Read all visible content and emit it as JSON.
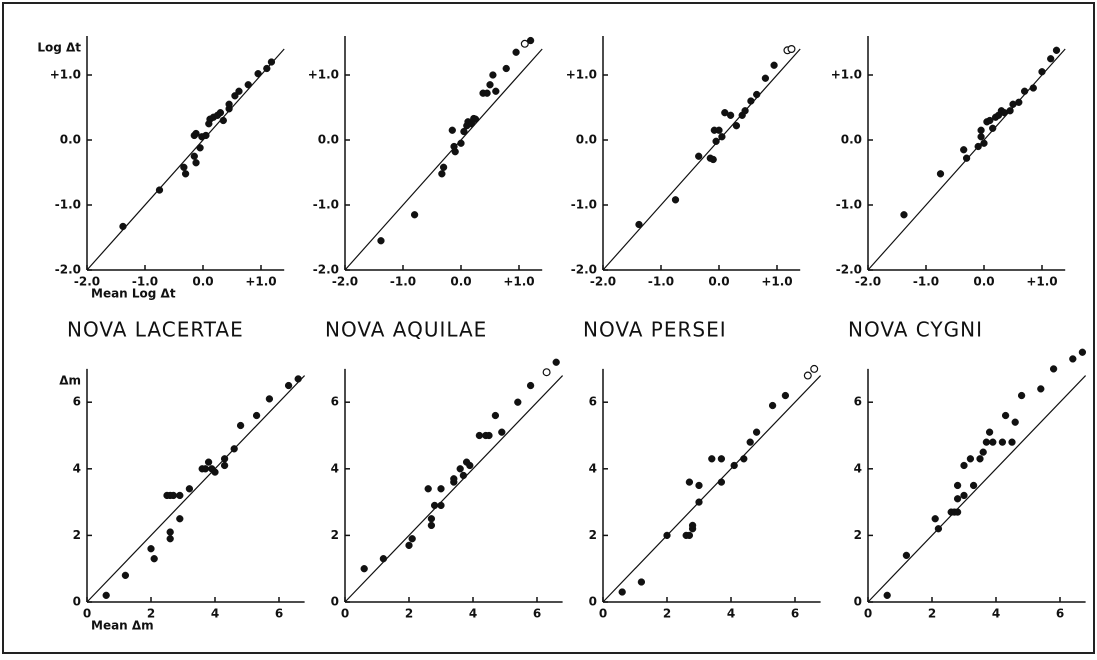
{
  "chart_data": [
    {
      "type": "scatter",
      "ylabel": "Log Δt",
      "xlabel": "Mean Log Δt",
      "xlim": [
        -2,
        1.4
      ],
      "ylim": [
        -2,
        1.6
      ],
      "identity_line": true,
      "xticks": [
        {
          "value": -2,
          "label": "-2.0"
        },
        {
          "value": -1,
          "label": "-1.0"
        },
        {
          "value": 0,
          "label": "0.0"
        },
        {
          "value": 1,
          "label": "+1.0"
        }
      ],
      "yticks": [
        {
          "value": -2,
          "label": "-2.0"
        },
        {
          "value": -1,
          "label": "-1.0"
        },
        {
          "value": 0,
          "label": "0.0"
        },
        {
          "value": 1,
          "label": "+1.0"
        }
      ],
      "series": [
        {
          "fill": "filled",
          "x": [
            -1.38,
            -0.75,
            -0.33,
            -0.3,
            -0.15,
            -0.12,
            -0.15,
            -0.12,
            -0.05,
            -0.02,
            0.05,
            0.1,
            0.12,
            0.18,
            0.25,
            0.3,
            0.35,
            0.45,
            0.45,
            0.55,
            0.62,
            0.78,
            0.95,
            1.1,
            1.18
          ],
          "values": [
            -1.33,
            -0.77,
            -0.42,
            -0.52,
            0.07,
            0.1,
            -0.25,
            -0.35,
            -0.12,
            0.05,
            0.07,
            0.25,
            0.32,
            0.35,
            0.38,
            0.42,
            0.3,
            0.48,
            0.55,
            0.68,
            0.75,
            0.85,
            1.02,
            1.1,
            1.2
          ]
        }
      ]
    },
    {
      "type": "scatter",
      "xlim": [
        -2,
        1.4
      ],
      "ylim": [
        -2,
        1.6
      ],
      "identity_line": true,
      "xticks": [
        {
          "value": -2,
          "label": "-2.0"
        },
        {
          "value": -1,
          "label": "-1.0"
        },
        {
          "value": 0,
          "label": "0.0"
        },
        {
          "value": 1,
          "label": "+1.0"
        }
      ],
      "yticks": [
        {
          "value": -2,
          "label": "-2.0"
        },
        {
          "value": -1,
          "label": "-1.0"
        },
        {
          "value": 0,
          "label": "0.0"
        },
        {
          "value": 1,
          "label": "+1.0"
        }
      ],
      "series": [
        {
          "fill": "filled",
          "x": [
            -1.38,
            -0.8,
            -0.33,
            -0.3,
            -0.15,
            -0.12,
            -0.1,
            0.0,
            0.05,
            0.1,
            0.12,
            0.18,
            0.22,
            0.25,
            0.38,
            0.45,
            0.5,
            0.55,
            0.6,
            0.78,
            0.95,
            1.2
          ],
          "values": [
            -1.55,
            -1.15,
            -0.52,
            -0.42,
            0.15,
            -0.1,
            -0.18,
            -0.05,
            0.13,
            0.22,
            0.28,
            0.25,
            0.33,
            0.32,
            0.72,
            0.72,
            0.85,
            1.0,
            0.75,
            1.1,
            1.35,
            1.53
          ]
        },
        {
          "fill": "open",
          "x": [
            1.1
          ],
          "values": [
            1.48
          ]
        }
      ]
    },
    {
      "type": "scatter",
      "xlim": [
        -2,
        1.4
      ],
      "ylim": [
        -2,
        1.6
      ],
      "identity_line": true,
      "xticks": [
        {
          "value": -2,
          "label": "-2.0"
        },
        {
          "value": -1,
          "label": "-1.0"
        },
        {
          "value": 0,
          "label": "0.0"
        },
        {
          "value": 1,
          "label": "+1.0"
        }
      ],
      "yticks": [
        {
          "value": -2,
          "label": "-2.0"
        },
        {
          "value": -1,
          "label": "-1.0"
        },
        {
          "value": 0,
          "label": "0.0"
        },
        {
          "value": 1,
          "label": "+1.0"
        }
      ],
      "series": [
        {
          "fill": "filled",
          "x": [
            -1.38,
            -0.75,
            -0.35,
            -0.15,
            -0.1,
            -0.08,
            -0.05,
            0.0,
            0.05,
            0.1,
            0.2,
            0.3,
            0.4,
            0.45,
            0.55,
            0.65,
            0.8,
            0.95
          ],
          "values": [
            -1.3,
            -0.92,
            -0.25,
            -0.28,
            -0.3,
            0.15,
            -0.02,
            0.15,
            0.05,
            0.42,
            0.38,
            0.22,
            0.38,
            0.45,
            0.6,
            0.7,
            0.95,
            1.15
          ]
        },
        {
          "fill": "open",
          "x": [
            1.18,
            1.25
          ],
          "values": [
            1.38,
            1.4
          ]
        }
      ]
    },
    {
      "type": "scatter",
      "xlim": [
        -2,
        1.4
      ],
      "ylim": [
        -2,
        1.6
      ],
      "identity_line": true,
      "xticks": [
        {
          "value": -2,
          "label": "-2.0"
        },
        {
          "value": -1,
          "label": "-1.0"
        },
        {
          "value": 0,
          "label": "0.0"
        },
        {
          "value": 1,
          "label": "+1.0"
        }
      ],
      "yticks": [
        {
          "value": -2,
          "label": "-2.0"
        },
        {
          "value": -1,
          "label": "-1.0"
        },
        {
          "value": 0,
          "label": "0.0"
        },
        {
          "value": 1,
          "label": "+1.0"
        }
      ],
      "series": [
        {
          "fill": "filled",
          "x": [
            -1.38,
            -0.75,
            -0.35,
            -0.3,
            -0.1,
            -0.05,
            -0.05,
            0.0,
            0.05,
            0.1,
            0.15,
            0.2,
            0.25,
            0.3,
            0.35,
            0.45,
            0.5,
            0.6,
            0.7,
            0.85,
            1.0,
            1.15,
            1.25
          ],
          "values": [
            -1.15,
            -0.52,
            -0.15,
            -0.28,
            -0.1,
            0.05,
            0.15,
            -0.05,
            0.28,
            0.3,
            0.18,
            0.35,
            0.38,
            0.45,
            0.42,
            0.45,
            0.55,
            0.58,
            0.75,
            0.8,
            1.05,
            1.25,
            1.38
          ]
        }
      ]
    },
    {
      "type": "scatter",
      "ylabel": "Δm",
      "xlabel": "Mean Δm",
      "xlim": [
        0,
        6.8
      ],
      "ylim": [
        0,
        7
      ],
      "identity_line": true,
      "xticks": [
        0,
        2,
        4,
        6
      ],
      "yticks": [
        0,
        2,
        4,
        6
      ],
      "series": [
        {
          "fill": "filled",
          "x": [
            0.6,
            1.2,
            2.0,
            2.1,
            2.5,
            2.6,
            2.7,
            2.6,
            2.6,
            2.9,
            2.9,
            3.2,
            3.6,
            3.7,
            3.8,
            3.9,
            4.0,
            4.3,
            4.3,
            4.6,
            4.8,
            5.3,
            5.7,
            6.3,
            6.6
          ],
          "values": [
            0.2,
            0.8,
            1.6,
            1.3,
            3.2,
            3.2,
            3.2,
            1.9,
            2.1,
            3.2,
            2.5,
            3.4,
            4.0,
            4.0,
            4.2,
            4.0,
            3.9,
            4.1,
            4.3,
            4.6,
            5.3,
            5.6,
            6.1,
            6.5,
            6.7
          ]
        }
      ]
    },
    {
      "type": "scatter",
      "xlim": [
        0,
        6.8
      ],
      "ylim": [
        0,
        7
      ],
      "identity_line": true,
      "xticks": [
        0,
        2,
        4,
        6
      ],
      "yticks": [
        0,
        2,
        4,
        6
      ],
      "series": [
        {
          "fill": "filled",
          "x": [
            0.6,
            1.2,
            2.0,
            2.1,
            2.6,
            2.7,
            2.7,
            2.8,
            3.0,
            3.0,
            3.4,
            3.4,
            3.6,
            3.7,
            3.8,
            3.9,
            4.2,
            4.4,
            4.5,
            4.7,
            4.9,
            5.4,
            5.8,
            6.6
          ],
          "values": [
            1.0,
            1.3,
            1.7,
            1.9,
            3.4,
            2.3,
            2.5,
            2.9,
            3.4,
            2.9,
            3.6,
            3.7,
            4.0,
            3.8,
            4.2,
            4.1,
            5.0,
            5.0,
            5.0,
            5.6,
            5.1,
            6.0,
            6.5,
            7.2
          ]
        },
        {
          "fill": "open",
          "x": [
            6.3
          ],
          "values": [
            6.9
          ]
        }
      ]
    },
    {
      "type": "scatter",
      "xlim": [
        0,
        6.8
      ],
      "ylim": [
        0,
        7
      ],
      "identity_line": true,
      "xticks": [
        0,
        2,
        4,
        6
      ],
      "yticks": [
        0,
        2,
        4,
        6
      ],
      "series": [
        {
          "fill": "filled",
          "x": [
            0.6,
            1.2,
            2.0,
            2.6,
            2.7,
            2.7,
            2.8,
            2.8,
            3.0,
            3.0,
            3.4,
            3.7,
            3.7,
            4.1,
            4.4,
            4.6,
            4.8,
            5.3,
            5.7
          ],
          "values": [
            0.3,
            0.6,
            2.0,
            2.0,
            2.0,
            3.6,
            2.2,
            2.3,
            3.5,
            3.0,
            4.3,
            4.3,
            3.6,
            4.1,
            4.3,
            4.8,
            5.1,
            5.9,
            6.2
          ]
        },
        {
          "fill": "open",
          "x": [
            6.4,
            6.6
          ],
          "values": [
            6.8,
            7.0
          ]
        }
      ]
    },
    {
      "type": "scatter",
      "xlim": [
        0,
        6.8
      ],
      "ylim": [
        0,
        7
      ],
      "identity_line": true,
      "xticks": [
        0,
        2,
        4,
        6
      ],
      "yticks": [
        0,
        2,
        4,
        6
      ],
      "series": [
        {
          "fill": "filled",
          "x": [
            0.6,
            1.2,
            2.1,
            2.2,
            2.6,
            2.7,
            2.8,
            2.8,
            2.8,
            3.0,
            3.0,
            3.2,
            3.3,
            3.5,
            3.6,
            3.7,
            3.8,
            3.9,
            4.2,
            4.3,
            4.5,
            4.6,
            4.8,
            5.4,
            5.8,
            6.4,
            6.7
          ],
          "values": [
            0.2,
            1.4,
            2.5,
            2.2,
            2.7,
            2.7,
            3.1,
            3.5,
            2.7,
            3.2,
            4.1,
            4.3,
            3.5,
            4.3,
            4.5,
            4.8,
            5.1,
            4.8,
            4.8,
            5.6,
            4.8,
            5.4,
            6.2,
            6.4,
            7.0,
            7.3,
            7.5
          ]
        }
      ]
    }
  ],
  "nova_names": [
    "NOVA LACERTAE",
    "NOVA AQUILAE",
    "NOVA PERSEI",
    "NOVA CYGNI"
  ]
}
